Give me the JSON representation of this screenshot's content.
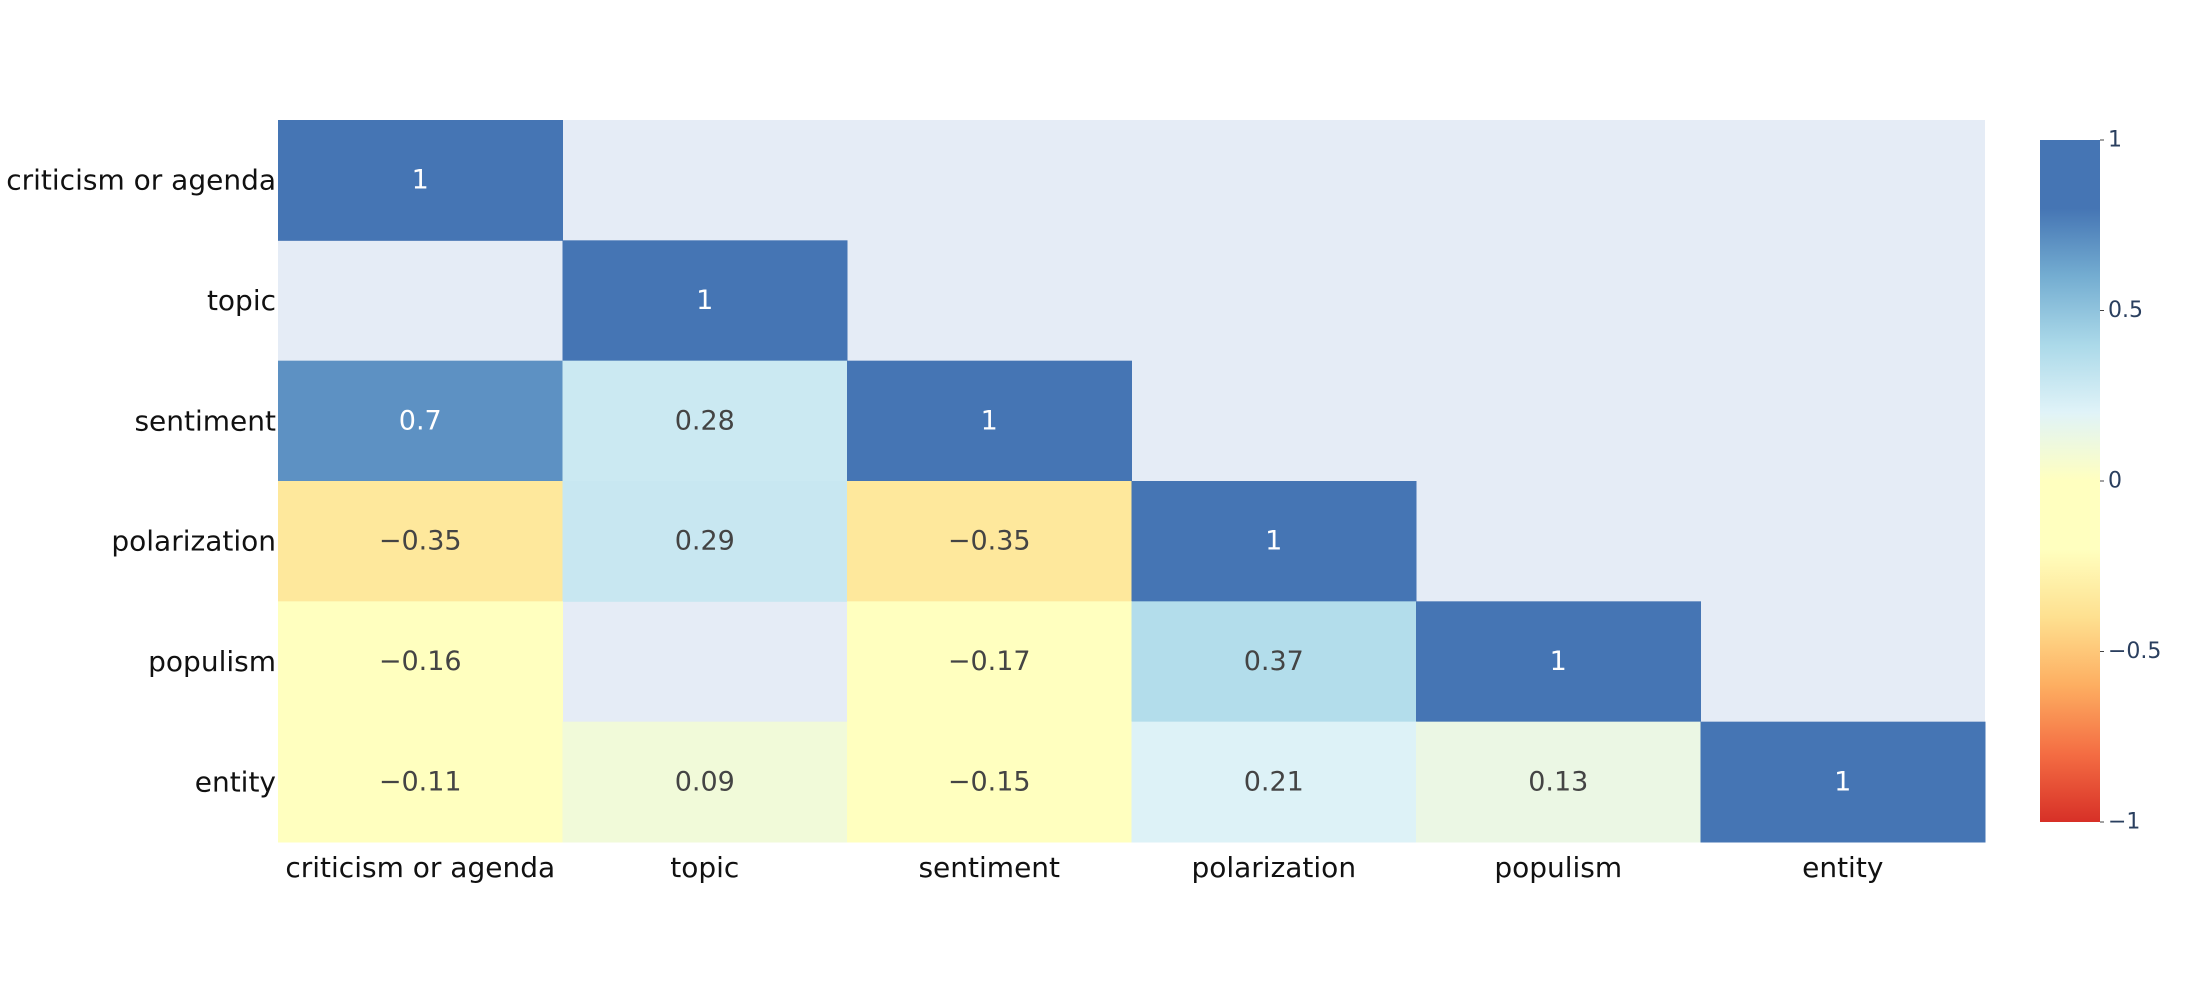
{
  "chart_data": {
    "type": "heatmap",
    "title": "",
    "xlabel": "",
    "ylabel": "",
    "x": [
      "criticism or agenda",
      "topic",
      "sentiment",
      "polarization",
      "populism",
      "entity"
    ],
    "y": [
      "criticism or agenda",
      "topic",
      "sentiment",
      "polarization",
      "populism",
      "entity"
    ],
    "z": [
      [
        1,
        null,
        null,
        null,
        null,
        null
      ],
      [
        null,
        1,
        null,
        null,
        null,
        null
      ],
      [
        0.7,
        0.28,
        1,
        null,
        null,
        null
      ],
      [
        -0.35,
        0.29,
        -0.35,
        1,
        null,
        null
      ],
      [
        -0.16,
        null,
        -0.17,
        0.37,
        1,
        null
      ],
      [
        -0.11,
        0.09,
        -0.15,
        0.21,
        0.13,
        1
      ]
    ],
    "labels": [
      [
        "1",
        "",
        "",
        "",
        "",
        ""
      ],
      [
        "",
        "1",
        "",
        "",
        "",
        ""
      ],
      [
        "0.7",
        "0.28",
        "1",
        "",
        "",
        ""
      ],
      [
        "−0.35",
        "0.29",
        "−0.35",
        "1",
        "",
        ""
      ],
      [
        "−0.16",
        "",
        "−0.17",
        "0.37",
        "1",
        ""
      ],
      [
        "−0.11",
        "0.09",
        "−0.15",
        "0.21",
        "0.13",
        "1"
      ]
    ],
    "zmin": -1,
    "zmax": 1,
    "missing_color": "#e5ecf6",
    "colorscale": [
      [
        0.0,
        "#d73027"
      ],
      [
        0.1,
        "#f46d43"
      ],
      [
        0.2,
        "#fdae61"
      ],
      [
        0.3,
        "#fee090"
      ],
      [
        0.4,
        "#ffffbf"
      ],
      [
        0.5,
        "#ffffbf"
      ],
      [
        0.6,
        "#e0f3f8"
      ],
      [
        0.7,
        "#abd9e9"
      ],
      [
        0.8,
        "#74add1"
      ],
      [
        0.9,
        "#4575b4"
      ],
      [
        1.0,
        "#4575b4"
      ]
    ],
    "colorbar": {
      "ticks": [
        1,
        0.5,
        0,
        -0.5,
        -1
      ],
      "ticklabels": [
        "1",
        "0.5",
        "0",
        "−0.5",
        "−1"
      ]
    }
  }
}
